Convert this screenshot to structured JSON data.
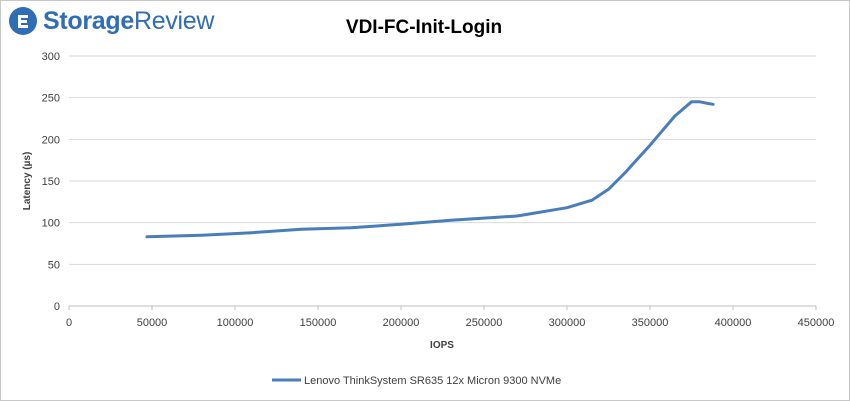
{
  "brand": {
    "name_bold": "Storage",
    "name_rest": "Review",
    "icon": "storagereview-logo-icon",
    "color": "#2f6db5"
  },
  "chart_data": {
    "type": "line",
    "title": "VDI-FC-Init-Login",
    "xlabel": "IOPS",
    "ylabel": "Latency (µs)",
    "xlim": [
      0,
      450000
    ],
    "ylim": [
      0,
      300
    ],
    "x_ticks": [
      0,
      50000,
      100000,
      150000,
      200000,
      250000,
      300000,
      350000,
      400000,
      450000
    ],
    "y_ticks": [
      0,
      50,
      100,
      150,
      200,
      250,
      300
    ],
    "grid": true,
    "legend_position": "bottom",
    "series": [
      {
        "name": "Lenovo ThinkSystem SR635 12x Micron 9300 NVMe",
        "color": "#4a7ebb",
        "points": [
          [
            47000,
            83
          ],
          [
            80000,
            85
          ],
          [
            110000,
            88
          ],
          [
            140000,
            92
          ],
          [
            170000,
            94
          ],
          [
            200000,
            98
          ],
          [
            230000,
            103
          ],
          [
            270000,
            108
          ],
          [
            300000,
            118
          ],
          [
            315000,
            127
          ],
          [
            325000,
            140
          ],
          [
            335000,
            160
          ],
          [
            350000,
            193
          ],
          [
            365000,
            228
          ],
          [
            375000,
            245
          ],
          [
            380000,
            245
          ],
          [
            385000,
            243
          ],
          [
            388000,
            242
          ]
        ]
      }
    ]
  }
}
